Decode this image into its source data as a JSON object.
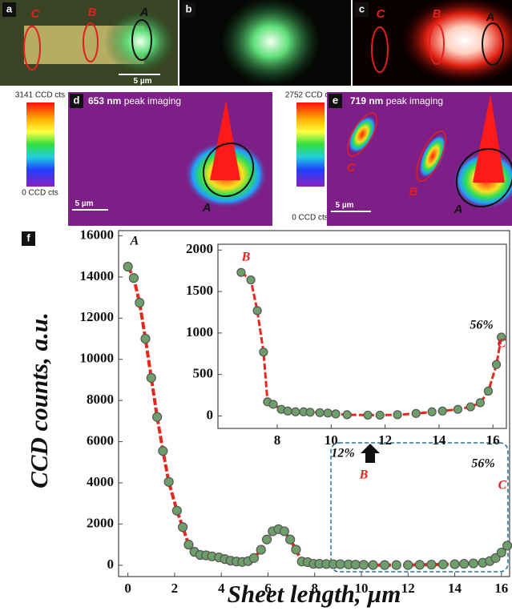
{
  "panels": {
    "a": {
      "label": "a",
      "tags": [
        "C",
        "B",
        "A"
      ],
      "scale": "5 µm"
    },
    "b": {
      "label": "b"
    },
    "c": {
      "label": "c",
      "tags": [
        "C",
        "B",
        "A"
      ]
    },
    "d": {
      "label": "d",
      "title_bold": "653 nm",
      "title": "peak imaging",
      "colorbar_max": "3141 CCD cts",
      "colorbar_min": "0 CCD cts",
      "scale": "5 µm",
      "tags": [
        "A"
      ]
    },
    "e": {
      "label": "e",
      "title_bold": "719 nm",
      "title": "peak imaging",
      "colorbar_max": "2752 CCD cts",
      "colorbar_min": "0 CCD cts",
      "scale": "5 µm",
      "tags": [
        "C",
        "B",
        "A"
      ]
    },
    "f": {
      "label": "f"
    }
  },
  "chart_data": [
    {
      "type": "scatter-line",
      "x_label": "Sheet length, µm",
      "y_label": "CCD counts, a.u.",
      "x": [
        0,
        0.25,
        0.5,
        0.75,
        1,
        1.25,
        1.5,
        1.75,
        2.1,
        2.35,
        2.6,
        2.85,
        3.1,
        3.35,
        3.6,
        3.9,
        4.15,
        4.4,
        4.65,
        4.9,
        5.15,
        5.4,
        5.7,
        5.95,
        6.2,
        6.45,
        6.7,
        6.95,
        7.2,
        7.45,
        7.7,
        7.95,
        8.2,
        8.5,
        8.8,
        9.1,
        9.45,
        9.75,
        10.1,
        10.5,
        11,
        11.5,
        12,
        12.5,
        13,
        13.5,
        14,
        14.4,
        14.8,
        15.2,
        15.5,
        15.75,
        16,
        16.25
      ],
      "values": [
        14500,
        13950,
        12750,
        11000,
        9100,
        7200,
        5550,
        4050,
        2650,
        1850,
        1000,
        650,
        500,
        480,
        430,
        380,
        300,
        220,
        180,
        160,
        200,
        350,
        750,
        1250,
        1650,
        1750,
        1650,
        1250,
        760,
        180,
        150,
        70,
        70,
        60,
        50,
        50,
        40,
        30,
        20,
        10,
        10,
        10,
        10,
        20,
        30,
        40,
        50,
        70,
        90,
        120,
        200,
        350,
        620,
        950
      ],
      "line_color": "#e8261c",
      "marker_color": "#6e9e6a",
      "xlim": [
        -0.4,
        16.35
      ],
      "xticks": [
        0,
        2,
        4,
        6,
        8,
        10,
        12,
        14,
        16
      ],
      "ylim": [
        -550,
        16250
      ],
      "yticks": [
        0,
        2000,
        4000,
        6000,
        8000,
        10000,
        12000,
        14000,
        16000
      ],
      "annotations": [
        "A",
        "12%",
        "B",
        "56%",
        "C"
      ]
    },
    {
      "type": "scatter-line",
      "x": [
        6.66,
        7.02,
        7.26,
        7.49,
        7.64,
        7.85,
        8.15,
        8.39,
        8.68,
        8.98,
        9.22,
        9.58,
        9.88,
        10.17,
        10.59,
        11.36,
        11.81,
        12.46,
        13.15,
        13.74,
        14.13,
        14.7,
        15.17,
        15.53,
        15.83,
        16.13,
        16.31
      ],
      "values": [
        1730,
        1640,
        1270,
        770,
        170,
        140,
        80,
        60,
        50,
        50,
        45,
        40,
        35,
        25,
        15,
        10,
        10,
        15,
        30,
        50,
        60,
        80,
        110,
        160,
        300,
        620,
        950
      ],
      "line_color": "#e8261c",
      "marker_color": "#6e9e6a",
      "xlim": [
        5.8,
        16.5
      ],
      "xticks": [
        8,
        10,
        12,
        14,
        16
      ],
      "ylim": [
        -150,
        2070
      ],
      "yticks": [
        0,
        500,
        1000,
        1500,
        2000
      ],
      "annotations": [
        "B",
        "56%",
        "C"
      ]
    }
  ]
}
